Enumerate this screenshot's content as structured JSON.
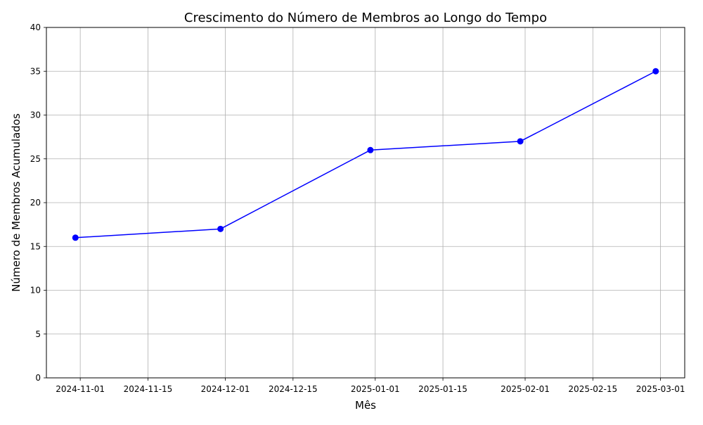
{
  "chart_data": {
    "type": "line",
    "title": "Crescimento do Número de Membros ao Longo do Tempo",
    "xlabel": "Mês",
    "ylabel": "Número de Membros Acumulados",
    "x_type": "date",
    "xlim": [
      "2024-10-25",
      "2025-03-06"
    ],
    "ylim": [
      0,
      40
    ],
    "x_ticks": [
      "2024-11-01",
      "2024-11-15",
      "2024-12-01",
      "2024-12-15",
      "2025-01-01",
      "2025-01-15",
      "2025-02-01",
      "2025-02-15",
      "2025-03-01"
    ],
    "y_ticks": [
      0,
      5,
      10,
      15,
      20,
      25,
      30,
      35,
      40
    ],
    "grid": true,
    "series": [
      {
        "x": [
          "2024-10-31",
          "2024-11-30",
          "2024-12-31",
          "2025-01-31",
          "2025-02-28"
        ],
        "y": [
          16,
          17,
          26,
          27,
          35
        ],
        "color": "#0000ff",
        "marker": "circle"
      }
    ]
  }
}
